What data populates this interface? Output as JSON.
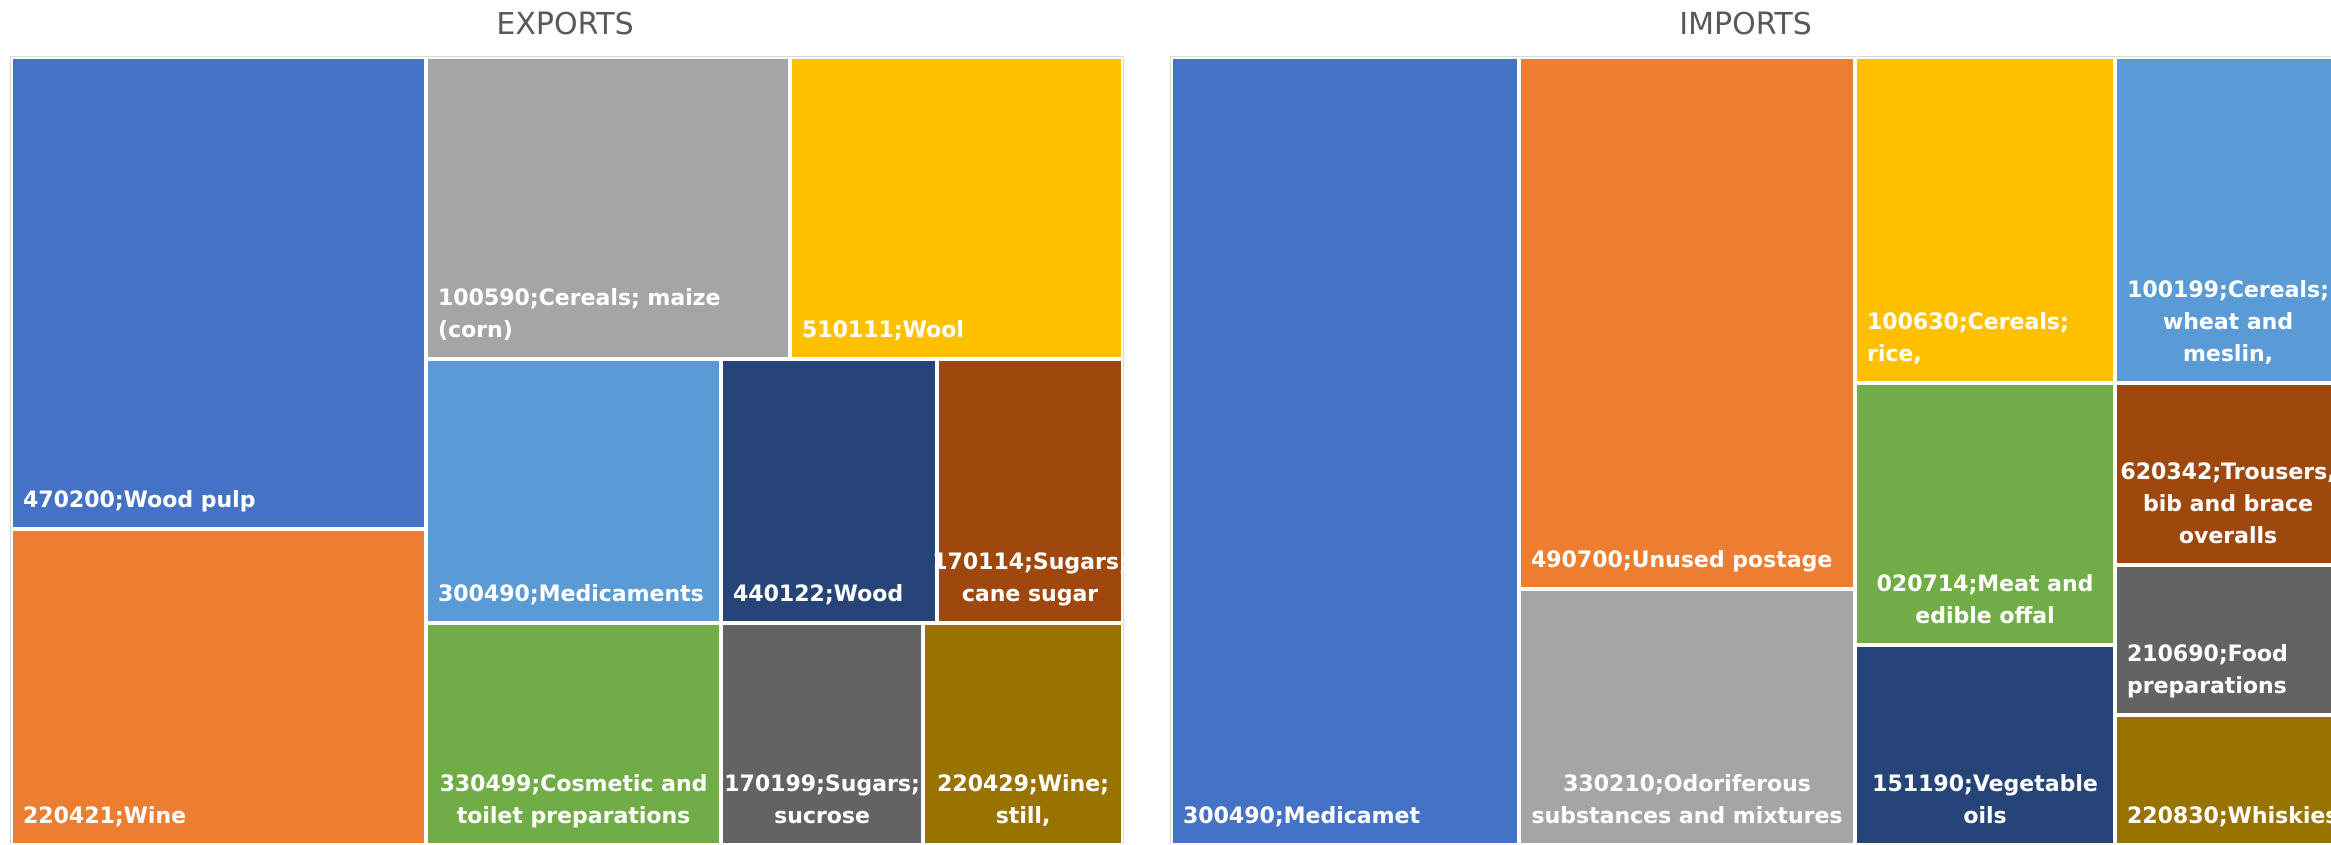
{
  "chart_data": [
    {
      "type": "treemap",
      "title": "EXPORTS",
      "items": [
        {
          "label": "470200;Wood pulp",
          "color": "#4472C4"
        },
        {
          "label": "220421;Wine",
          "color": "#ED7D31"
        },
        {
          "label": "100590;Cereals; maize (corn)",
          "color": "#A5A5A5"
        },
        {
          "label": "510111;Wool",
          "color": "#FFC000"
        },
        {
          "label": "300490;Medicaments",
          "color": "#5B9BD5"
        },
        {
          "label": "440122;Wood",
          "color": "#264478"
        },
        {
          "label": "170114;Sugars;\ncane sugar",
          "color": "#9E480E"
        },
        {
          "label": "330499;Cosmetic and\ntoilet preparations",
          "color": "#70AD47"
        },
        {
          "label": "170199;Sugars;\nsucrose",
          "color": "#636363"
        },
        {
          "label": "220429;Wine;\nstill,",
          "color": "#997300"
        }
      ]
    },
    {
      "type": "treemap",
      "title": "IMPORTS",
      "items": [
        {
          "label": "300490;Medicamet",
          "color": "#4472C4"
        },
        {
          "label": "490700;Unused postage",
          "color": "#ED7D31"
        },
        {
          "label": "330210;Odoriferous\nsubstances and mixtures",
          "color": "#A5A5A5"
        },
        {
          "label": "100630;Cereals; rice,",
          "color": "#FFC000"
        },
        {
          "label": "020714;Meat and\nedible offal",
          "color": "#70AD47"
        },
        {
          "label": "151190;Vegetable\noils",
          "color": "#264478"
        },
        {
          "label": "100199;Cereals;\nwheat and meslin,",
          "color": "#5B9BD5"
        },
        {
          "label": "620342;Trousers,\nbib and brace\noveralls",
          "color": "#9E480E"
        },
        {
          "label": "210690;Food\npreparations",
          "color": "#636363"
        },
        {
          "label": "220830;Whiskies",
          "color": "#997300"
        }
      ]
    }
  ]
}
